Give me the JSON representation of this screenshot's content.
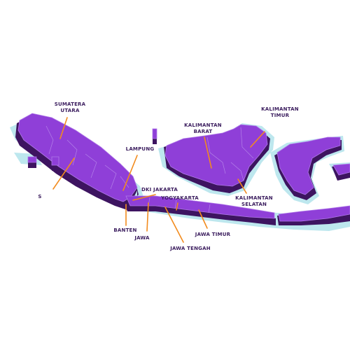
{
  "map": {
    "colors": {
      "land": "#8f3fd8",
      "land_side": "#3d1460",
      "halo": "#bde7ee",
      "leader": "#f28b1e",
      "label": "#3b1d5e"
    },
    "labels": {
      "sumatera_utara_1": "SUMATERA",
      "sumatera_utara_2": "UTARA",
      "lampung": "LAMPUNG",
      "kalimantan_barat_1": "KALIMANTAN",
      "kalimantan_barat_2": "BARAT",
      "kalimantan_timur_1": "KALIMANTAN",
      "kalimantan_timur_2": "TIMUR",
      "kalimantan_selatan_1": "KALIMANTAN",
      "kalimantan_selatan_2": "SELATAN",
      "dki_jakarta": "DKI JAKARTA",
      "yogyakarta": "YOGYAKARTA",
      "banten": "BANTEN",
      "jawa": "JAWA",
      "jawa_tengah": "JAWA TENGAH",
      "jawa_timur": "JAWA TIMUR",
      "partial_s": "S"
    }
  }
}
